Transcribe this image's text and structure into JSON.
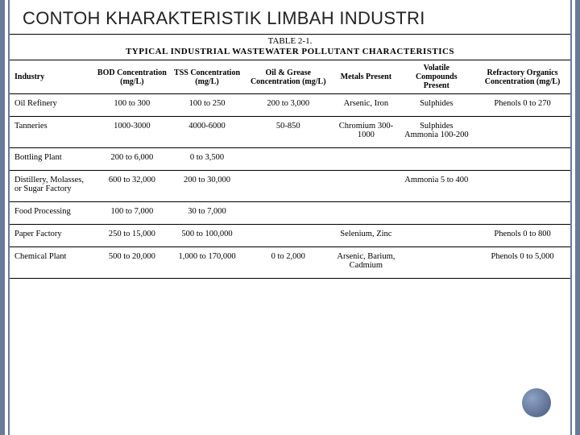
{
  "colors": {
    "frame_accent": "#6a7a9a",
    "text": "#222222",
    "rule": "#000000",
    "background": "#ffffff",
    "nav_dot_light": "#8ea2c4",
    "nav_dot_dark": "#5b6e92"
  },
  "typography": {
    "title_font": "Arial",
    "title_size_pt": 17,
    "body_font": "Times New Roman",
    "body_size_pt": 8,
    "header_size_pt": 8
  },
  "slide_title": "CONTOH KHARAKTERISTIK LIMBAH INDUSTRI",
  "table": {
    "type": "table",
    "caption": "TABLE 2-1.",
    "title": "TYPICAL INDUSTRIAL WASTEWATER POLLUTANT CHARACTERISTICS",
    "columns": [
      "Industry",
      "BOD Concentration (mg/L)",
      "TSS Concentration (mg/L)",
      "Oil & Grease Concentration (mg/L)",
      "Metals Present",
      "Volatile Compounds Present",
      "Refractory Organics Concentration (mg/L)"
    ],
    "col_align": [
      "left",
      "center",
      "center",
      "center",
      "center",
      "center",
      "center"
    ],
    "rows": [
      {
        "industry": "Oil Refinery",
        "bod": "100 to 300",
        "tss": "100 to 250",
        "oil": "200 to 3,000",
        "metals": "Arsenic, Iron",
        "volatile": "Sulphides",
        "refractory": "Phenols 0 to 270"
      },
      {
        "industry": "Tanneries",
        "bod": "1000-3000",
        "tss": "4000-6000",
        "oil": "50-850",
        "metals": "Chromium 300-1000",
        "volatile": "Sulphides Ammonia 100-200",
        "refractory": ""
      },
      {
        "industry": "Bottling Plant",
        "bod": "200 to 6,000",
        "tss": "0 to 3,500",
        "oil": "",
        "metals": "",
        "volatile": "",
        "refractory": ""
      },
      {
        "industry": "Distillery, Molasses, or Sugar Factory",
        "bod": "600 to 32,000",
        "tss": "200 to 30,000",
        "oil": "",
        "metals": "",
        "volatile": "Ammonia 5 to 400",
        "refractory": ""
      },
      {
        "industry": "Food Processing",
        "bod": "100 to 7,000",
        "tss": "30 to 7,000",
        "oil": "",
        "metals": "",
        "volatile": "",
        "refractory": ""
      },
      {
        "industry": "Paper Factory",
        "bod": "250 to 15,000",
        "tss": "500 to 100,000",
        "oil": "",
        "metals": "Selenium, Zinc",
        "volatile": "",
        "refractory": "Phenols 0 to 800"
      },
      {
        "industry": "Chemical Plant",
        "bod": "500 to 20,000",
        "tss": "1,000 to 170,000",
        "oil": "0 to 2,000",
        "metals": "Arsenic, Barium, Cadmium",
        "volatile": "",
        "refractory": "Phenols 0 to 5,000"
      }
    ]
  }
}
